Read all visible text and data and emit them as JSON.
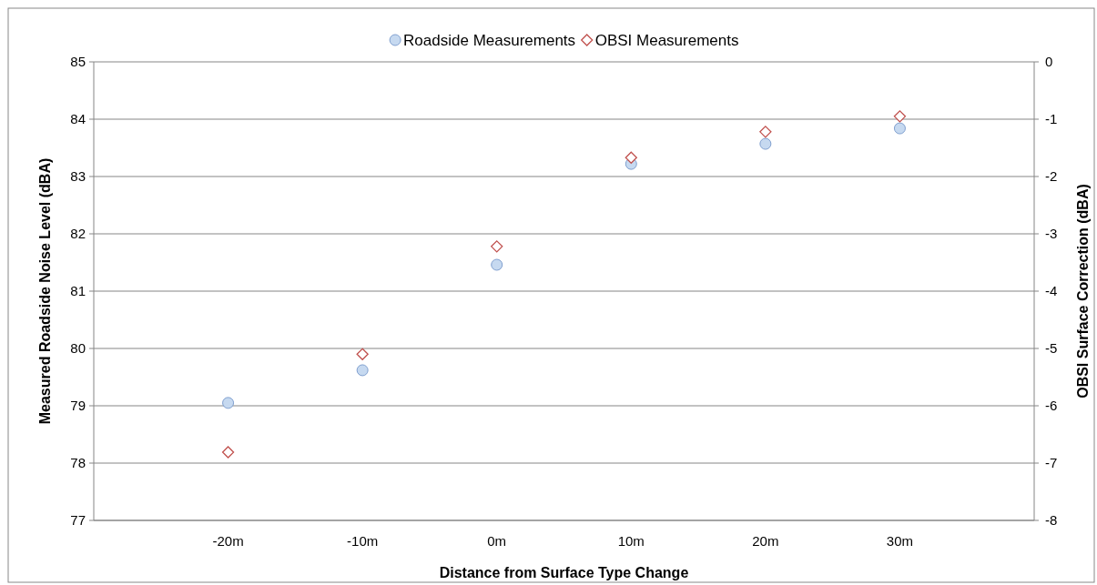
{
  "chart_data": {
    "type": "scatter",
    "xlabel": "Distance from  Surface Type Change",
    "ylabel": "Measured Roadside Noise Level (dBA)",
    "y2label": "OBSI Surface Correction (dBA)",
    "x": [
      -20,
      -10,
      0,
      10,
      20,
      30
    ],
    "xlim": [
      -30,
      40
    ],
    "xticks": [
      {
        "value": -20,
        "label": "-20m"
      },
      {
        "value": -10,
        "label": "-10m"
      },
      {
        "value": 0,
        "label": "0m"
      },
      {
        "value": 10,
        "label": "10m"
      },
      {
        "value": 20,
        "label": "20m"
      },
      {
        "value": 30,
        "label": "30m"
      }
    ],
    "ylim": [
      77,
      85
    ],
    "yticks": [
      77,
      78,
      79,
      80,
      81,
      82,
      83,
      84,
      85
    ],
    "y2lim": [
      -8,
      0
    ],
    "y2ticks": [
      -8,
      -7,
      -6,
      -5,
      -4,
      -3,
      -2,
      -1,
      0
    ],
    "grid": "y",
    "legend": "top",
    "series": [
      {
        "name": "Roadside Measurements",
        "color": "#7f9fcf",
        "marker": "circle",
        "values": [
          79.05,
          79.62,
          81.46,
          83.22,
          83.57,
          83.84
        ]
      },
      {
        "name": "OBSI Measurements",
        "color": "#c0504d",
        "marker": "diamond",
        "axis": "y2",
        "values": [
          -6.81,
          -5.1,
          -3.22,
          -1.67,
          -1.22,
          -0.95
        ]
      }
    ]
  }
}
